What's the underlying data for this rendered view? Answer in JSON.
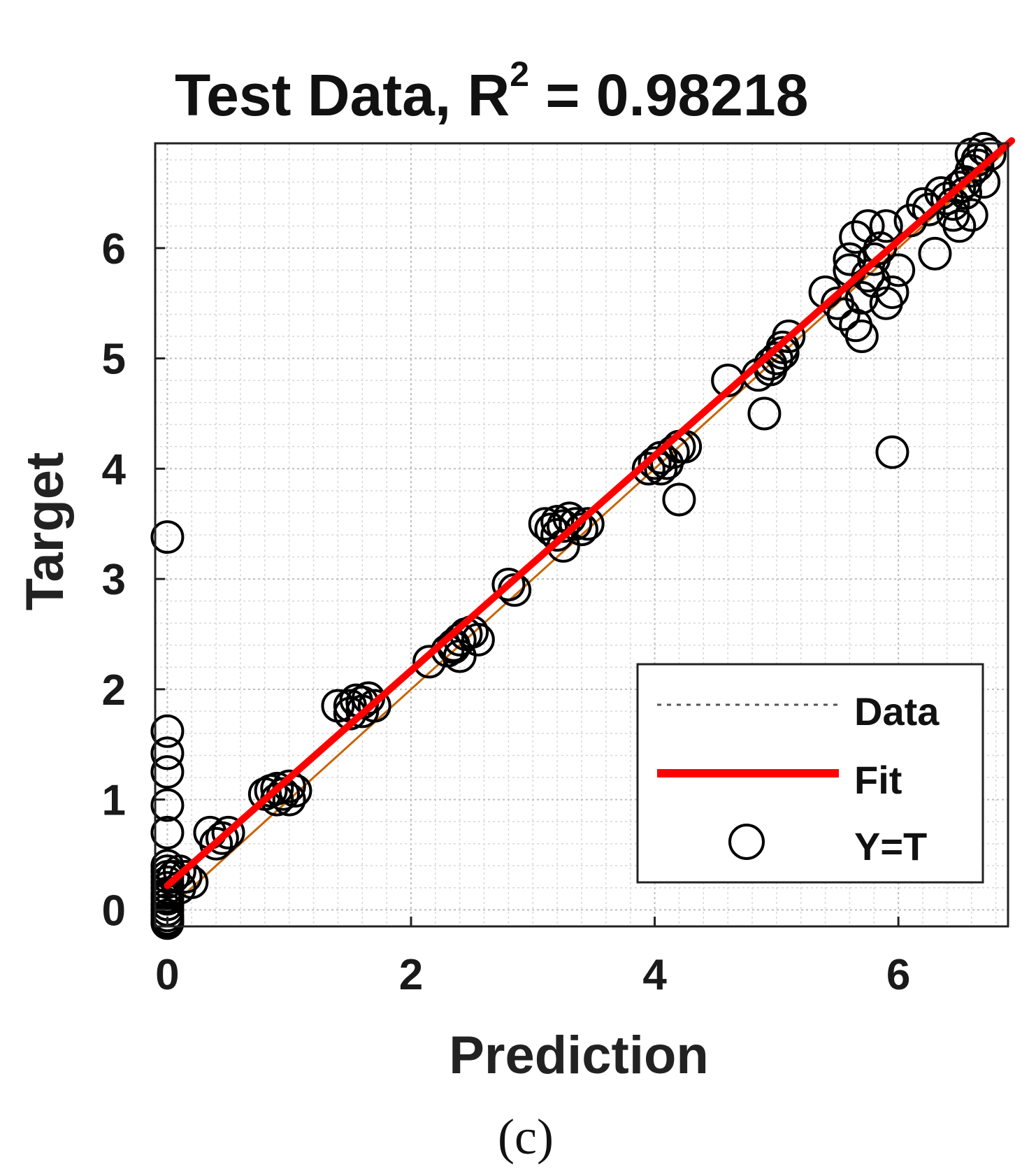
{
  "chart_data": {
    "type": "scatter",
    "title": "Test Data, R",
    "title_superscript": "2",
    "title_suffix": " = 0.98218",
    "xlabel": "Prediction",
    "ylabel": "Target",
    "xlim": [
      -0.1,
      6.9
    ],
    "ylim": [
      -0.15,
      6.95
    ],
    "xticks": [
      0,
      2,
      4,
      6
    ],
    "yticks": [
      0,
      1,
      2,
      3,
      4,
      5,
      6
    ],
    "xtick_labels": [
      "0",
      "2",
      "4",
      "6"
    ],
    "ytick_labels": [
      "0",
      "1",
      "2",
      "3",
      "4",
      "5",
      "6"
    ],
    "grid": true,
    "minor_grid": true,
    "legend": {
      "placement": "bottom-right",
      "entries": [
        "Data",
        "Fit",
        "Y=T"
      ]
    },
    "colors": {
      "fit": "#ff0000",
      "identity": "#c86400",
      "markers": "#000000",
      "data_line": "#555555"
    },
    "fit_line": {
      "x": [
        0,
        6.7
      ],
      "y": [
        0.22,
        6.72
      ]
    },
    "identity_line": {
      "x": [
        0,
        6.9
      ],
      "y": [
        0,
        6.9
      ]
    },
    "points": {
      "x": [
        0,
        0,
        0,
        0,
        0,
        0,
        0,
        0,
        0,
        0,
        0,
        0,
        0,
        0,
        0,
        0,
        0,
        0,
        0,
        0,
        0,
        0,
        0.05,
        0.1,
        0.15,
        0.1,
        0.2,
        0.35,
        0.45,
        0.5,
        0.4,
        0.8,
        0.85,
        0.9,
        0.95,
        1.0,
        1.05,
        0.9,
        1.0,
        1.4,
        1.5,
        1.55,
        1.6,
        1.65,
        1.7,
        1.5,
        1.6,
        2.15,
        2.3,
        2.35,
        2.4,
        2.45,
        2.5,
        2.55,
        2.4,
        2.35,
        2.8,
        2.85,
        3.1,
        3.15,
        3.2,
        3.25,
        3.3,
        3.35,
        3.4,
        3.45,
        3.25,
        3.2,
        3.95,
        4.0,
        4.05,
        4.1,
        4.15,
        4.2,
        4.25,
        4.05,
        4.2,
        4.6,
        4.85,
        4.9,
        4.95,
        5.0,
        5.05,
        5.1,
        5.05,
        4.95,
        5.4,
        5.5,
        5.55,
        5.6,
        5.65,
        5.7,
        5.75,
        5.8,
        5.85,
        5.9,
        5.95,
        5.6,
        5.7,
        5.8,
        5.65,
        5.75,
        5.9,
        6.0,
        5.95,
        6.1,
        6.2,
        6.25,
        6.3,
        6.35,
        6.4,
        6.45,
        6.5,
        6.55,
        6.6,
        6.65,
        6.7,
        6.75,
        6.6,
        6.5,
        6.7,
        6.65,
        6.55,
        6.45,
        6.6
      ],
      "y": [
        3.38,
        1.62,
        1.42,
        1.25,
        0.95,
        0.7,
        0.4,
        0.3,
        0.2,
        0.1,
        0.05,
        0.0,
        -0.05,
        -0.1,
        0.15,
        0.25,
        0.0,
        -0.08,
        0.12,
        0.05,
        0.35,
        -0.12,
        0.3,
        0.35,
        0.3,
        0.2,
        0.25,
        0.7,
        0.65,
        0.7,
        0.6,
        1.05,
        1.08,
        1.1,
        1.05,
        1.0,
        1.08,
        1.0,
        1.12,
        1.85,
        1.85,
        1.9,
        1.88,
        1.92,
        1.85,
        1.78,
        1.8,
        2.25,
        2.35,
        2.4,
        2.45,
        2.5,
        2.52,
        2.45,
        2.3,
        2.38,
        2.95,
        2.9,
        3.5,
        3.45,
        3.52,
        3.48,
        3.55,
        3.5,
        3.45,
        3.5,
        3.3,
        3.4,
        4.0,
        4.05,
        4.1,
        4.05,
        4.15,
        4.2,
        4.2,
        4.0,
        3.72,
        4.8,
        4.85,
        4.5,
        4.95,
        5.0,
        5.05,
        5.2,
        5.1,
        4.9,
        5.6,
        5.5,
        5.4,
        5.8,
        5.3,
        5.2,
        6.2,
        5.7,
        6.0,
        5.5,
        5.6,
        5.9,
        5.55,
        5.9,
        6.1,
        5.75,
        6.2,
        5.8,
        4.15,
        6.25,
        6.4,
        6.35,
        5.95,
        6.5,
        6.45,
        6.4,
        6.55,
        6.6,
        6.7,
        6.8,
        6.9,
        6.85,
        6.3,
        6.2,
        6.6,
        6.75,
        6.5,
        6.3,
        6.85
      ]
    }
  },
  "caption": "(c)"
}
